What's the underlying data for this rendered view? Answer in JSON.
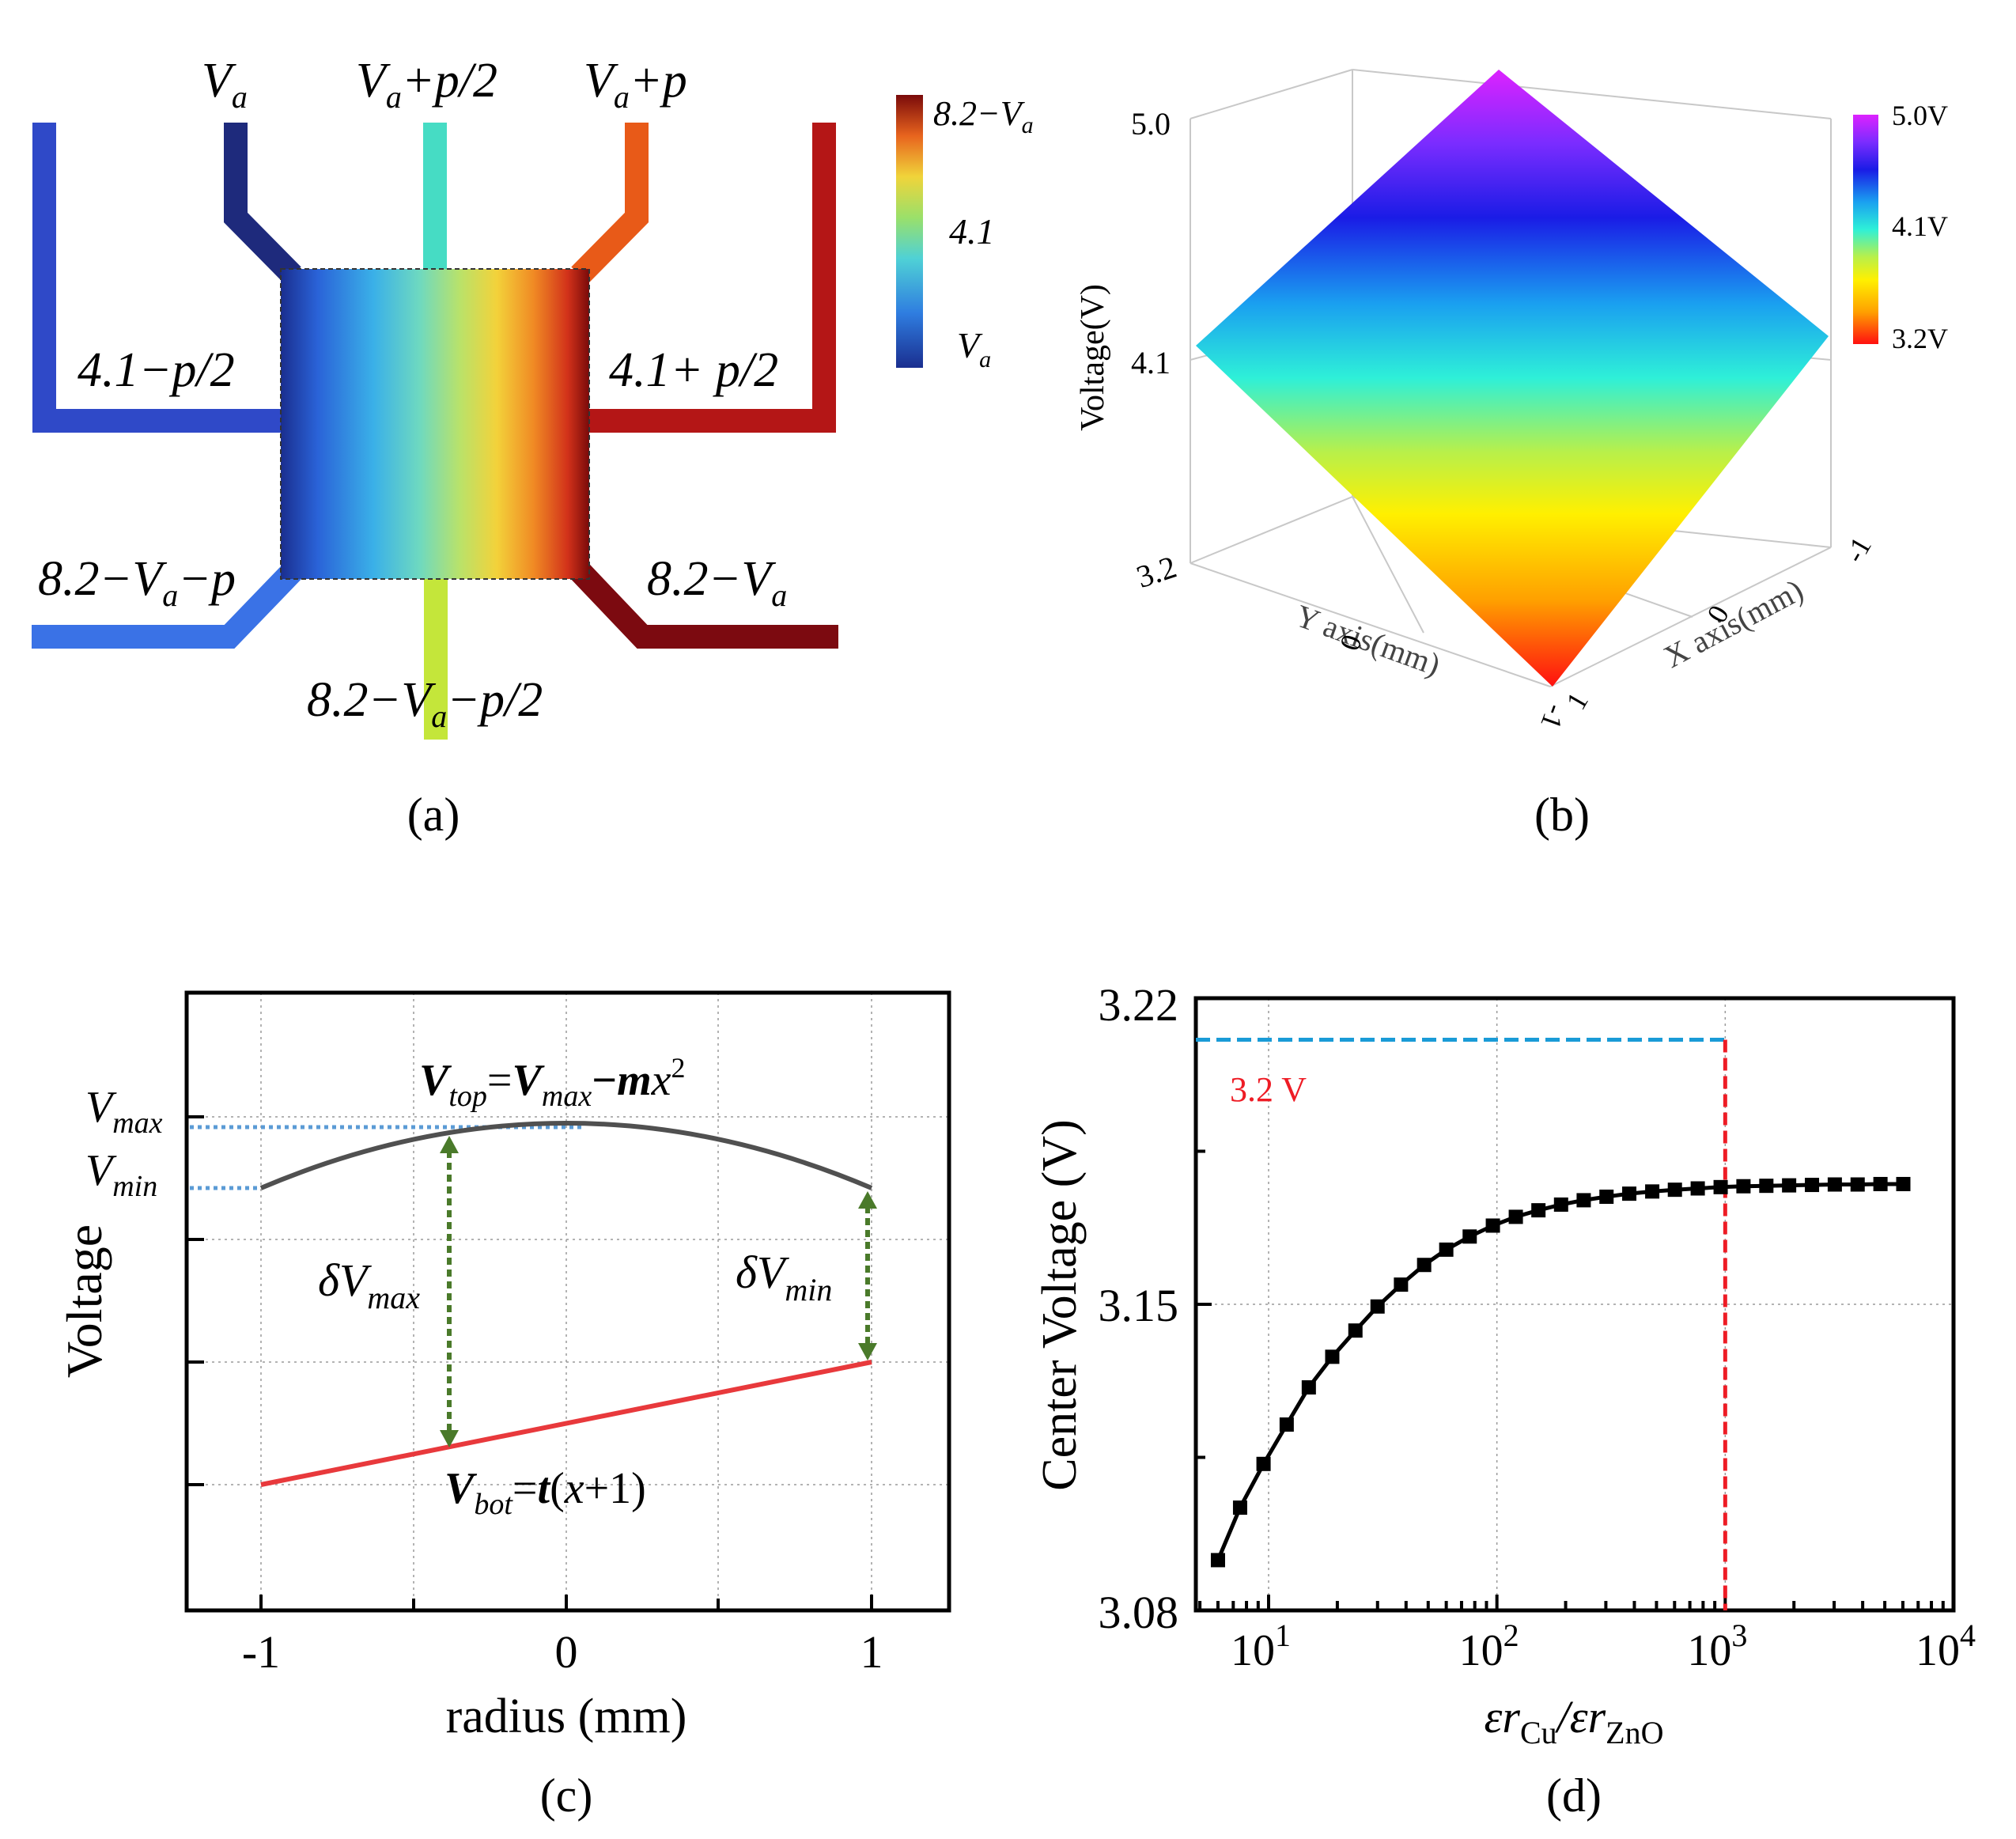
{
  "panel_a": {
    "caption": "(a)",
    "colorbar": {
      "top_label": "8.2−V",
      "top_sub": "a",
      "mid_label": "4.1",
      "bottom_label": "V",
      "bottom_sub": "a"
    },
    "terminals": {
      "t1_main": "V",
      "t1_sub": "a",
      "t2_main": "V",
      "t2_sub": "a",
      "t2_rest": "+p/2",
      "t3_main": "V",
      "t3_sub": "a",
      "t3_rest": "+p",
      "left_mid": "4.1−p/2",
      "right_mid": "4.1+ p/2",
      "bl_pre": "8.2−V",
      "bl_sub": "a",
      "bl_rest": "−p",
      "br_pre": "8.2−V",
      "br_sub": "a",
      "bottom_pre": "8.2−V",
      "bottom_sub": "a",
      "bottom_rest": "−p/2"
    }
  },
  "panel_b": {
    "caption": "(b)",
    "zlabel": "Voltage(V)",
    "z_ticks": [
      "5.0",
      "4.1",
      "3.2"
    ],
    "ylabel": "Y axis(mm)",
    "xlabel": "X axis(mm)",
    "y_ticks": [
      "1",
      "0",
      "-1"
    ],
    "x_ticks": [
      "-1",
      "0",
      "1"
    ],
    "colorbar": {
      "top": "5.0V",
      "mid": "4.1V",
      "bottom": "3.2V"
    },
    "accent_top": "#cc00ff",
    "accent_bottom": "#ff0000"
  },
  "panel_c": {
    "caption": "(c)",
    "xlabel": "radius (mm)",
    "ylabel": "Voltage",
    "x_ticks": [
      "-1",
      "0",
      "1"
    ],
    "label_vmax_main": "V",
    "label_vmax_sub": "max",
    "label_vmin_main": "V",
    "label_vmin_sub": "min",
    "top_eq": {
      "v": "V",
      "sub": "top",
      "eq": "=",
      "v2": "V",
      "sub2": "max",
      "rest": "−",
      "m": "m",
      "x": "x",
      "sup": "2"
    },
    "bot_eq": {
      "v": "V",
      "sub": "bot",
      "eq": "=",
      "t": "t",
      "rest1": "(",
      "x": "x",
      "rest2": "+1)"
    },
    "dvmax": {
      "d": "δV",
      "sub": "max"
    },
    "dvmin": {
      "d": "δV",
      "sub": "min"
    },
    "colors": {
      "top_curve": "#505050",
      "bottom_line": "#e8393c",
      "arrows": "#4a7a2a",
      "dotted": "#5b9bd5"
    }
  },
  "chart_data": {
    "type": "scatter",
    "title": "",
    "xlabel_main": "εr",
    "xlabel_sub1": "Cu",
    "xlabel_slash": "/εr",
    "xlabel_sub2": "ZnO",
    "ylabel": "Center Voltage (V)",
    "xscale": "log",
    "xlim": [
      4.8,
      10000
    ],
    "ylim": [
      3.08,
      3.22
    ],
    "y_ticks": [
      "3.22",
      "3.15",
      "3.08"
    ],
    "x_ticks": [
      {
        "base": "10",
        "exp": "1"
      },
      {
        "base": "10",
        "exp": "2"
      },
      {
        "base": "10",
        "exp": "3"
      },
      {
        "base": "10",
        "exp": "4"
      }
    ],
    "x": [
      6,
      7.5,
      9.5,
      12,
      15,
      19,
      24,
      30,
      38,
      48,
      60,
      76,
      96,
      121,
      152,
      191,
      240,
      302,
      380,
      479,
      602,
      758,
      955,
      1202,
      1514,
      1905,
      2399,
      3020,
      3802,
      4786,
      6026
    ],
    "y": [
      3.0915,
      3.1035,
      3.1135,
      3.1225,
      3.131,
      3.138,
      3.144,
      3.1495,
      3.1545,
      3.159,
      3.1625,
      3.1655,
      3.168,
      3.17,
      3.1715,
      3.1728,
      3.1738,
      3.1746,
      3.1753,
      3.1758,
      3.1762,
      3.1765,
      3.1768,
      3.177,
      3.1771,
      3.1772,
      3.1773,
      3.1774,
      3.1774,
      3.1775,
      3.1775
    ],
    "annotation": "3.2 V",
    "ref_y": 3.2105,
    "ref_x": 1000,
    "colors": {
      "hline": "#1a9bd7",
      "vline": "#ee1c25",
      "annotation": "#ee1c25",
      "markers": "#000000"
    }
  },
  "panel_d": {
    "caption": "(d)"
  }
}
